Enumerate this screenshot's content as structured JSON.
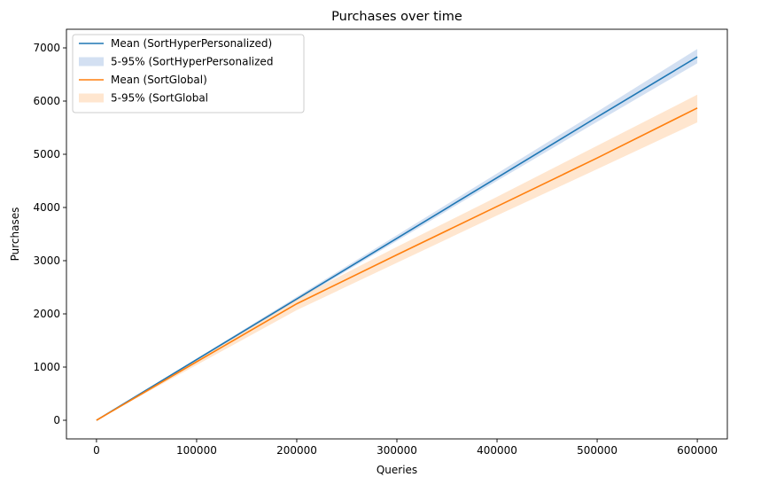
{
  "chart_data": {
    "type": "line",
    "title": "Purchases over time",
    "xlabel": "Queries",
    "ylabel": "Purchases",
    "xlim": [
      -30000,
      630000
    ],
    "ylim": [
      -350,
      7350
    ],
    "x_ticks": [
      0,
      100000,
      200000,
      300000,
      400000,
      500000,
      600000
    ],
    "y_ticks": [
      0,
      1000,
      2000,
      3000,
      4000,
      5000,
      6000,
      7000
    ],
    "grid": false,
    "legend_position": "top-left",
    "x": [
      0,
      100000,
      200000,
      300000,
      400000,
      500000,
      600000
    ],
    "series": [
      {
        "name": "Mean (SortHyperPersonalized)",
        "kind": "line",
        "color": "#1f77b4",
        "values": [
          0,
          1140,
          2280,
          3420,
          4560,
          5700,
          6830
        ]
      },
      {
        "name": "5-95% (SortHyperPersonalized",
        "kind": "band",
        "color": "#aec7e8",
        "lower": [
          0,
          1120,
          2250,
          3370,
          4500,
          5610,
          6710
        ],
        "upper": [
          0,
          1160,
          2320,
          3480,
          4640,
          5800,
          6980
        ]
      },
      {
        "name": "Mean (SortGlobal)",
        "kind": "line",
        "color": "#ff7f0e",
        "values": [
          0,
          1100,
          2190,
          3110,
          4020,
          4930,
          5870
        ]
      },
      {
        "name": "5-95% (SortGlobal",
        "kind": "band",
        "color": "#ffd2a8",
        "lower": [
          0,
          1040,
          2070,
          2960,
          3850,
          4720,
          5600
        ],
        "upper": [
          0,
          1150,
          2290,
          3260,
          4200,
          5160,
          6120
        ]
      }
    ]
  }
}
